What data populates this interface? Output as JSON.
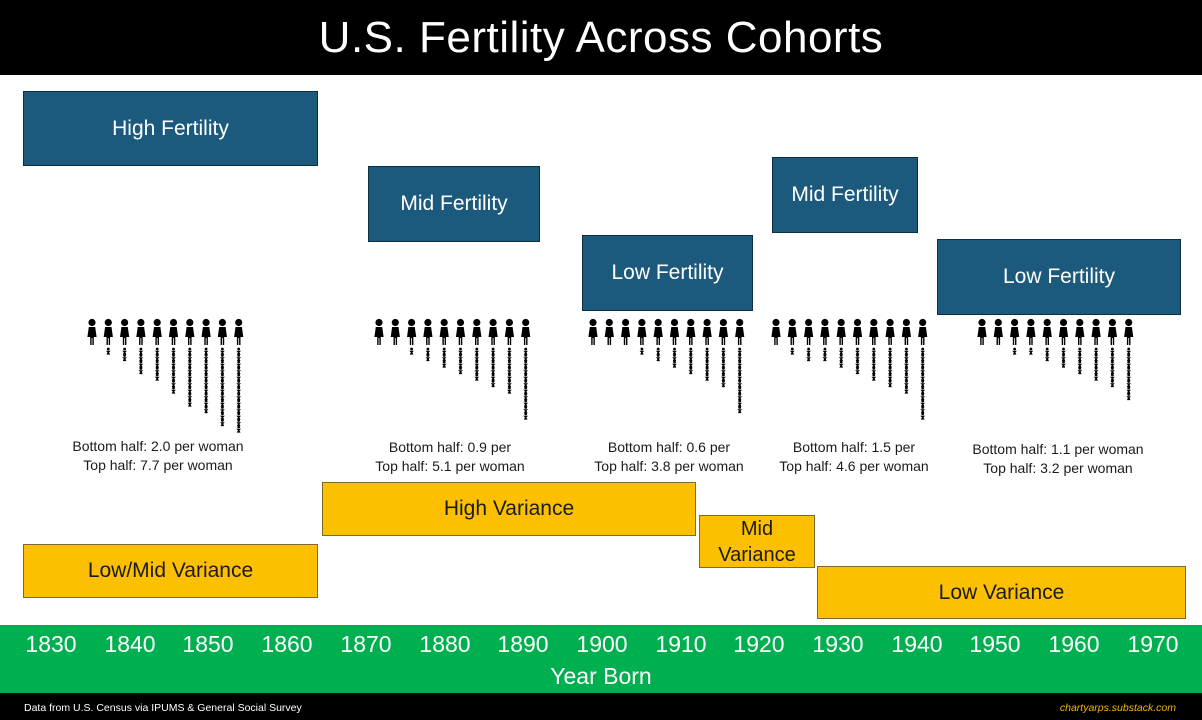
{
  "title": "U.S. Fertility Across Cohorts",
  "fertility_boxes": [
    {
      "label": "High Fertility"
    },
    {
      "label": "Mid Fertility"
    },
    {
      "label": "Low Fertility"
    },
    {
      "label": "Mid Fertility"
    },
    {
      "label": "Low Fertility"
    }
  ],
  "variance_boxes": [
    {
      "label": "Low/Mid Variance"
    },
    {
      "label": "High Variance"
    },
    {
      "label": "Mid Variance"
    },
    {
      "label": "Low Variance"
    }
  ],
  "cohort_stats": [
    {
      "bottom": "Bottom half: 2.0 per woman",
      "top": "Top half: 7.7 per woman"
    },
    {
      "bottom": "Bottom half: 0.9 per",
      "top": "Top half: 5.1 per woman"
    },
    {
      "bottom": "Bottom half: 0.6 per",
      "top": "Top half: 3.8 per woman"
    },
    {
      "bottom": "Bottom half: 1.5 per",
      "top": "Top half: 4.6 per woman"
    },
    {
      "bottom": "Bottom half: 1.1 per woman",
      "top": "Top half: 3.2 per woman"
    }
  ],
  "children_per_woman": [
    [
      0,
      1,
      2,
      4,
      5,
      7,
      9,
      10,
      12,
      13
    ],
    [
      0,
      0,
      1,
      2,
      3,
      4,
      5,
      6,
      7,
      11
    ],
    [
      0,
      0,
      0,
      1,
      2,
      3,
      4,
      5,
      6,
      10
    ],
    [
      0,
      1,
      2,
      2,
      3,
      4,
      5,
      6,
      7,
      11
    ],
    [
      0,
      0,
      1,
      1,
      2,
      3,
      4,
      5,
      6,
      8
    ]
  ],
  "axis": {
    "ticks": [
      "1830",
      "1840",
      "1850",
      "1860",
      "1870",
      "1880",
      "1890",
      "1900",
      "1910",
      "1920",
      "1930",
      "1940",
      "1950",
      "1960",
      "1970"
    ],
    "title": "Year Born"
  },
  "footer": {
    "source": "Data from U.S. Census via IPUMS & General Social Survey",
    "credit": "chartyarps.substack.com"
  },
  "colors": {
    "fertility_box": "#1b5a7c",
    "variance_box": "#fcc000",
    "axis_band": "#00b050",
    "title_bar": "#000000",
    "credit_text": "#f5b400"
  }
}
